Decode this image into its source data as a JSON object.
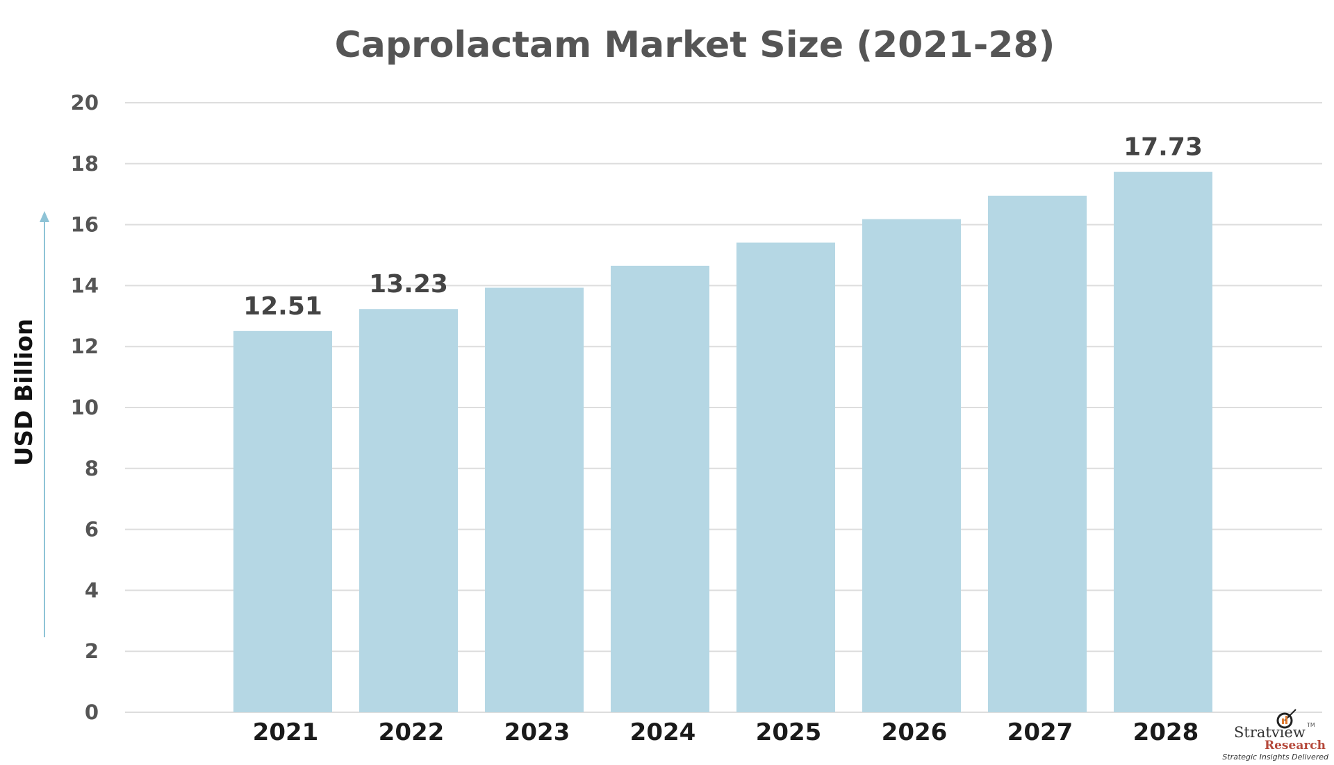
{
  "chart_data": {
    "type": "bar",
    "title": "Caprolactam Market Size (2021-28)",
    "xlabel": "",
    "ylabel": "USD Billion",
    "categories": [
      "2021",
      "2022",
      "2023",
      "2024",
      "2025",
      "2026",
      "2027",
      "2028"
    ],
    "values": [
      12.51,
      13.23,
      13.93,
      14.65,
      15.41,
      16.18,
      16.95,
      17.73
    ],
    "data_labels": {
      "0": "12.51",
      "1": "13.23",
      "7": "17.73"
    },
    "ylim": [
      0,
      20
    ],
    "yticks": [
      "0",
      "2",
      "4",
      "6",
      "8",
      "10",
      "12",
      "14",
      "16",
      "18",
      "20"
    ],
    "grid": true,
    "bar_color": "#b5d7e4",
    "arrow_color": "#8ec3d6"
  },
  "logo": {
    "name": "Stratview",
    "sub": "Research",
    "tagline": "Strategic Insights Delivered",
    "tm": "TM"
  }
}
